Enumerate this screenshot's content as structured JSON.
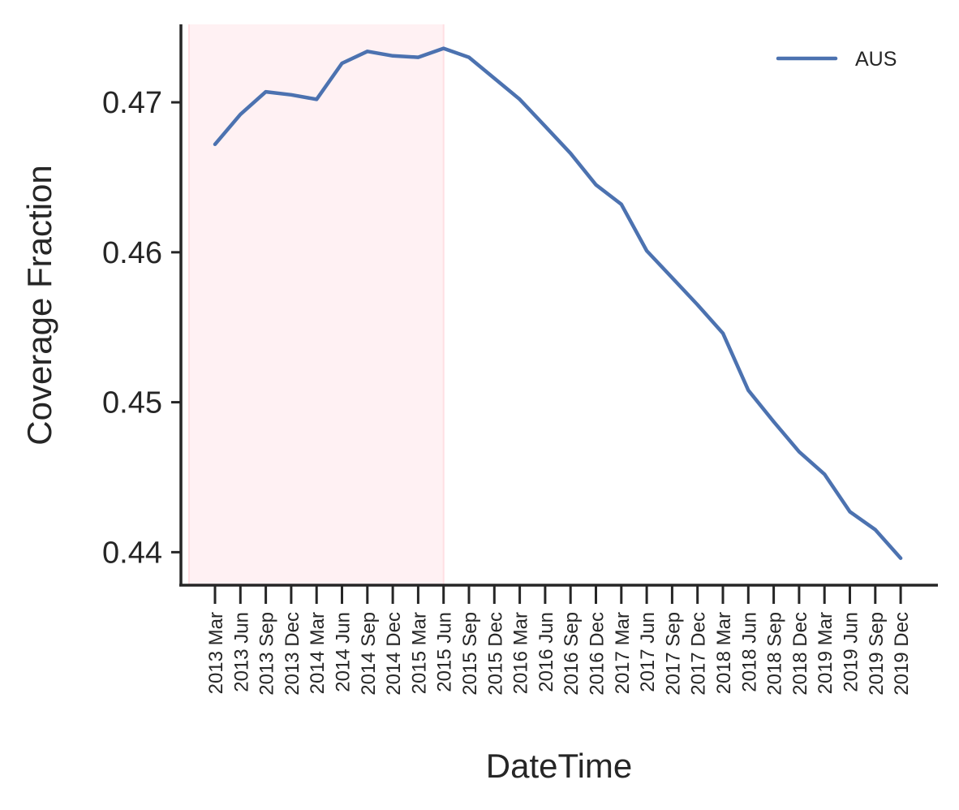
{
  "chart_data": {
    "type": "line",
    "title": "",
    "xlabel": "DateTime",
    "ylabel": "Coverage Fraction",
    "categories": [
      "2013 Mar",
      "2013 Jun",
      "2013 Sep",
      "2013 Dec",
      "2014 Mar",
      "2014 Jun",
      "2014 Sep",
      "2014 Dec",
      "2015 Mar",
      "2015 Jun",
      "2015 Sep",
      "2015 Dec",
      "2016 Mar",
      "2016 Jun",
      "2016 Sep",
      "2016 Dec",
      "2017 Mar",
      "2017 Jun",
      "2017 Sep",
      "2017 Dec",
      "2018 Mar",
      "2018 Jun",
      "2018 Sep",
      "2018 Dec",
      "2019 Mar",
      "2019 Jun",
      "2019 Sep",
      "2019 Dec"
    ],
    "series": [
      {
        "name": "AUS",
        "color": "#4c72b0",
        "values": [
          0.4672,
          0.4692,
          0.4707,
          0.4705,
          0.4702,
          0.4726,
          0.4734,
          0.4731,
          0.473,
          0.4736,
          0.473,
          0.4716,
          0.4702,
          0.4684,
          0.4666,
          0.4645,
          0.4632,
          0.4601,
          0.4583,
          0.4565,
          0.4546,
          0.4508,
          0.4487,
          0.4467,
          0.4452,
          0.4427,
          0.4415,
          0.4396
        ]
      }
    ],
    "yticks": [
      0.44,
      0.45,
      0.46,
      0.47
    ],
    "ytick_labels": [
      "0.44",
      "0.45",
      "0.46",
      "0.47"
    ],
    "ylim": [
      0.4378,
      0.4752
    ],
    "highlight_span": {
      "from": "2013 Mar",
      "to": "2015 Jun",
      "color": "#ffdfe3"
    },
    "grid": false,
    "legend": {
      "placement": "top-right"
    }
  }
}
